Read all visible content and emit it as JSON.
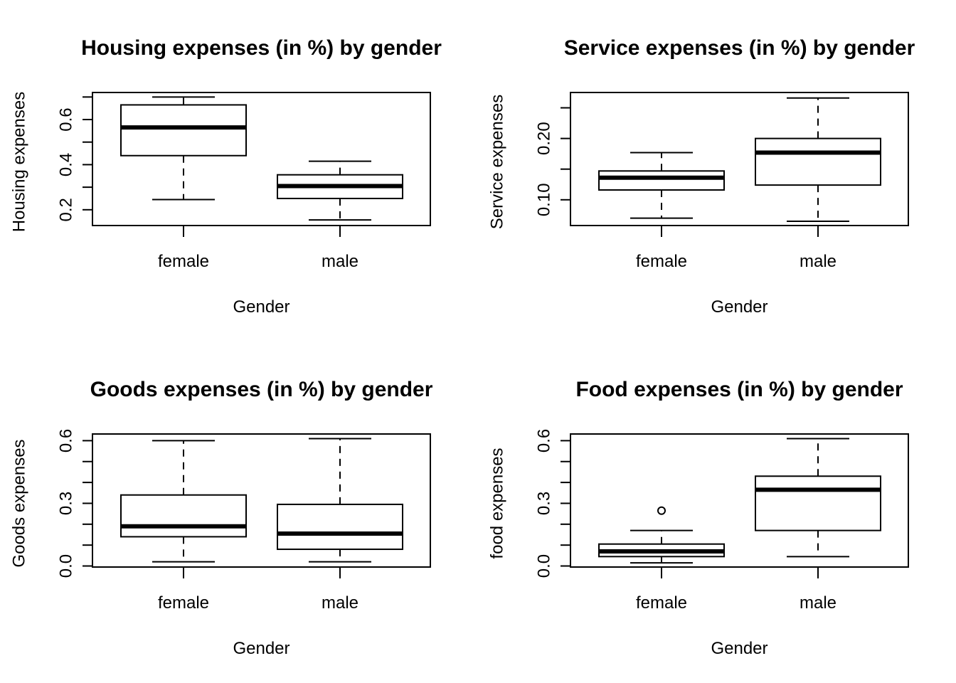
{
  "chart_data": [
    {
      "type": "boxplot",
      "title": "Housing expenses (in %) by gender",
      "xlabel": "Gender",
      "ylabel": "Housing expenses",
      "categories": [
        "female",
        "male"
      ],
      "ylim": [
        0.13,
        0.72
      ],
      "yticks": [
        0.2,
        0.3,
        0.4,
        0.5,
        0.6,
        0.7
      ],
      "ytick_labels": [
        "0.2",
        "0.4",
        "0.6"
      ],
      "boxes": [
        {
          "whisker_low": 0.245,
          "q1": 0.44,
          "median": 0.565,
          "q3": 0.665,
          "whisker_high": 0.7,
          "outliers": []
        },
        {
          "whisker_low": 0.155,
          "q1": 0.25,
          "median": 0.305,
          "q3": 0.355,
          "whisker_high": 0.415,
          "outliers": []
        }
      ]
    },
    {
      "type": "boxplot",
      "title": "Service expenses (in %) by gender",
      "xlabel": "Gender",
      "ylabel": "Service expenses",
      "categories": [
        "female",
        "male"
      ],
      "ylim": [
        0.058,
        0.275
      ],
      "yticks": [
        0.1,
        0.15,
        0.2,
        0.25
      ],
      "ytick_labels": [
        "0.10",
        "0.20"
      ],
      "boxes": [
        {
          "whisker_low": 0.07,
          "q1": 0.116,
          "median": 0.136,
          "q3": 0.147,
          "whisker_high": 0.177,
          "outliers": []
        },
        {
          "whisker_low": 0.065,
          "q1": 0.124,
          "median": 0.177,
          "q3": 0.2,
          "whisker_high": 0.266,
          "outliers": []
        }
      ]
    },
    {
      "type": "boxplot",
      "title": "Goods expenses (in %) by gender",
      "xlabel": "Gender",
      "ylabel": "Goods expenses",
      "categories": [
        "female",
        "male"
      ],
      "ylim": [
        -0.005,
        0.632
      ],
      "yticks": [
        0.0,
        0.1,
        0.2,
        0.3,
        0.4,
        0.5,
        0.6
      ],
      "ytick_labels": [
        "0.0",
        "0.3",
        "0.6"
      ],
      "boxes": [
        {
          "whisker_low": 0.02,
          "q1": 0.14,
          "median": 0.19,
          "q3": 0.34,
          "whisker_high": 0.6,
          "outliers": []
        },
        {
          "whisker_low": 0.02,
          "q1": 0.08,
          "median": 0.155,
          "q3": 0.295,
          "whisker_high": 0.61,
          "outliers": []
        }
      ]
    },
    {
      "type": "boxplot",
      "title": "Food expenses (in %) by gender",
      "xlabel": "Gender",
      "ylabel": "food expenses",
      "categories": [
        "female",
        "male"
      ],
      "ylim": [
        -0.005,
        0.632
      ],
      "yticks": [
        0.0,
        0.1,
        0.2,
        0.3,
        0.4,
        0.5,
        0.6
      ],
      "ytick_labels": [
        "0.0",
        "0.3",
        "0.6"
      ],
      "boxes": [
        {
          "whisker_low": 0.015,
          "q1": 0.045,
          "median": 0.07,
          "q3": 0.105,
          "whisker_high": 0.17,
          "outliers": [
            0.265
          ]
        },
        {
          "whisker_low": 0.045,
          "q1": 0.17,
          "median": 0.365,
          "q3": 0.43,
          "whisker_high": 0.61,
          "outliers": []
        }
      ]
    }
  ]
}
